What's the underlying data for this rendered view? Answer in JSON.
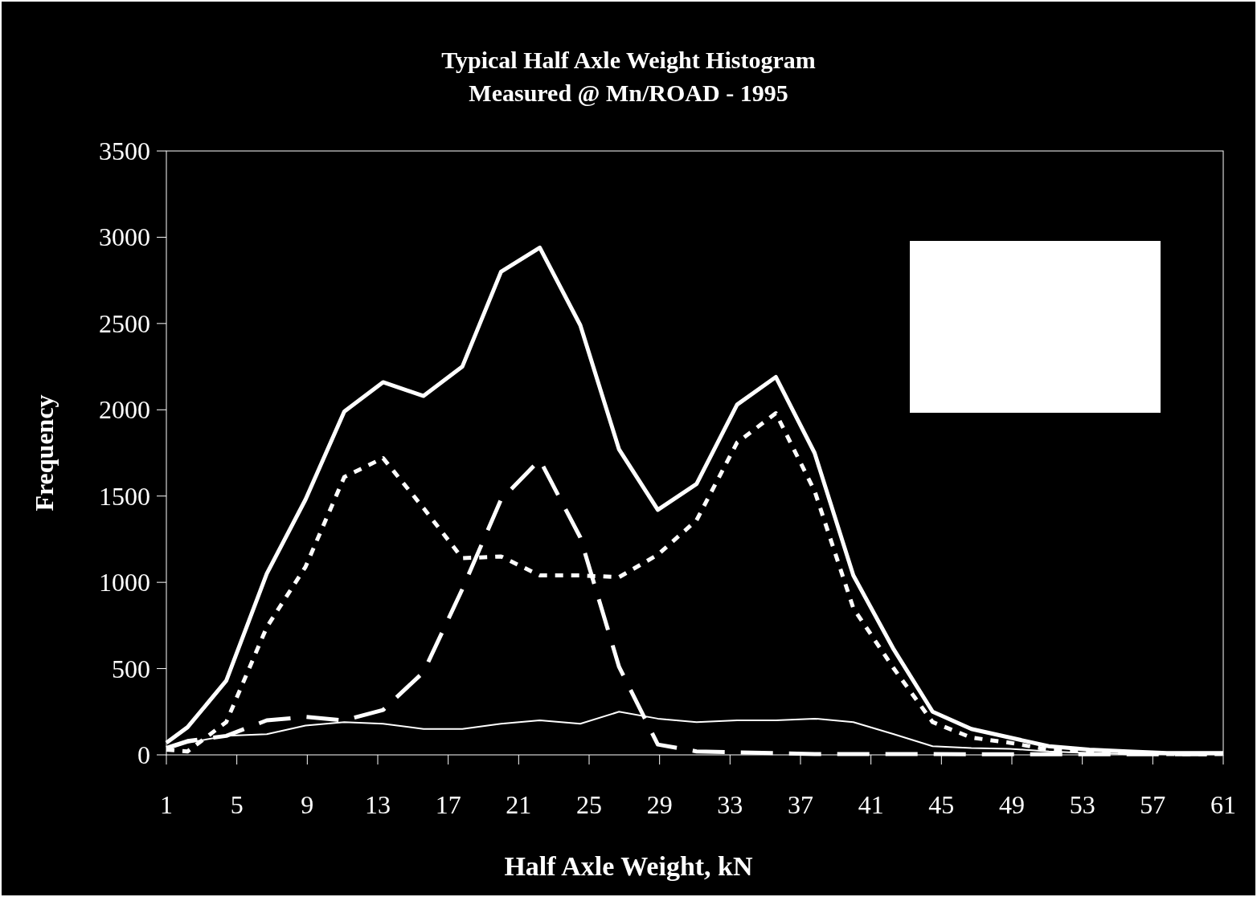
{
  "chart_data": {
    "type": "line",
    "title": "Typical Half Axle Weight Histogram",
    "subtitle": "Measured @ Mn/ROAD - 1995",
    "xlabel": "Half Axle Weight, kN",
    "ylabel": "Frequency",
    "x": [
      1,
      2.2,
      4.4,
      6.7,
      8.9,
      11.1,
      13.3,
      15.6,
      17.8,
      20,
      22.2,
      24.5,
      26.7,
      28.9,
      31.1,
      33.4,
      35.6,
      37.8,
      40,
      42.3,
      44.5,
      46.7,
      48.9,
      51.1,
      53.4,
      55.6,
      57.8,
      60,
      61
    ],
    "series": [
      {
        "color": "#ffffff",
        "line_style": "solid",
        "values": [
          70,
          160,
          430,
          1050,
          1480,
          1990,
          2160,
          2080,
          2250,
          2800,
          2940,
          2490,
          1770,
          1420,
          1570,
          2030,
          2190,
          1750,
          1040,
          610,
          250,
          150,
          100,
          50,
          30,
          20,
          10,
          10,
          10
        ]
      },
      {
        "color": "#ffffff",
        "line_style": "dotted",
        "values": [
          30,
          20,
          190,
          740,
          1090,
          1610,
          1720,
          1430,
          1140,
          1150,
          1040,
          1040,
          1030,
          1160,
          1360,
          1810,
          1980,
          1530,
          850,
          500,
          190,
          100,
          70,
          30,
          20,
          10,
          5,
          5,
          5
        ]
      },
      {
        "color": "#ffffff",
        "line_style": "dashed",
        "values": [
          40,
          80,
          110,
          200,
          220,
          200,
          260,
          480,
          960,
          1480,
          1710,
          1260,
          510,
          60,
          20,
          15,
          10,
          5,
          5,
          5,
          5,
          3,
          3,
          3,
          3,
          3,
          3,
          3,
          3
        ]
      },
      {
        "color": "#ffffff",
        "line_style": "solid",
        "values": [
          30,
          70,
          110,
          120,
          170,
          190,
          180,
          150,
          150,
          180,
          200,
          180,
          250,
          210,
          190,
          200,
          200,
          210,
          190,
          120,
          50,
          40,
          35,
          20,
          10,
          5,
          5,
          5,
          5
        ]
      }
    ],
    "xlim": [
      1,
      61
    ],
    "xticks": [
      1,
      5,
      9,
      13,
      17,
      21,
      25,
      29,
      33,
      37,
      41,
      45,
      49,
      53,
      57,
      61
    ],
    "ylim": [
      0,
      3500
    ],
    "yticks": [
      0,
      500,
      1000,
      1500,
      2000,
      2500,
      3000,
      3500
    ],
    "grid": false,
    "marker": "none"
  }
}
